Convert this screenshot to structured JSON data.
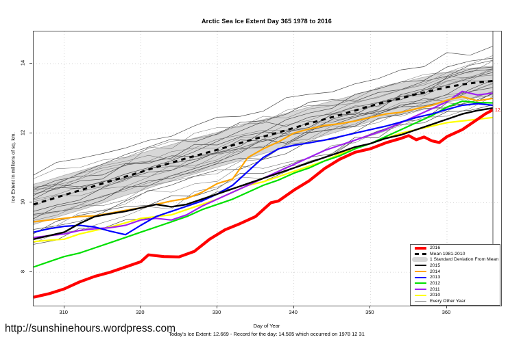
{
  "footer": {
    "url": "http://sunshinehours.wordpress.com",
    "caption": "Today's Ice Extent: 12.669  - Record for the day: 14.585 which occurred on 1978 12 31"
  },
  "chart_data": {
    "type": "line",
    "title": "Arctic Sea Ice Extent Day 365 1978 to 2016",
    "xlabel": "Day of Year",
    "ylabel": "Ice Extent in millions of sq. km.",
    "xlim": [
      306,
      366
    ],
    "ylim": [
      7.0,
      14.9
    ],
    "xticks": [
      310,
      320,
      330,
      340,
      350,
      360
    ],
    "yticks": [
      8,
      10,
      12,
      14
    ],
    "grid": "dotted",
    "grid_color": "#c9c9c9",
    "legend_position": "bottom-right",
    "end_marker_day": 366,
    "annotation": {
      "text": "12.669",
      "color": "#FF0000",
      "day": 366,
      "value": 12.67
    },
    "days": [
      306,
      308,
      310,
      312,
      314,
      316,
      318,
      320,
      322,
      324,
      326,
      328,
      330,
      332,
      334,
      336,
      338,
      340,
      342,
      344,
      346,
      348,
      350,
      352,
      354,
      356,
      358,
      360,
      362,
      364,
      366
    ],
    "band": {
      "label": "1 Standard Deviation From Mean",
      "fill": "#D7D7D7",
      "edge": "#ABABAB",
      "upper": [
        10.53,
        10.65,
        10.79,
        10.91,
        11.04,
        11.17,
        11.29,
        11.42,
        11.55,
        11.67,
        11.8,
        11.91,
        12.02,
        12.15,
        12.28,
        12.39,
        12.51,
        12.63,
        12.75,
        12.87,
        12.98,
        13.1,
        13.23,
        13.34,
        13.44,
        13.56,
        13.66,
        13.75,
        13.83,
        13.89,
        13.93
      ],
      "lower": [
        9.37,
        9.51,
        9.65,
        9.78,
        9.92,
        10.06,
        10.21,
        10.34,
        10.49,
        10.63,
        10.76,
        10.89,
        11.02,
        11.15,
        11.28,
        11.41,
        11.53,
        11.67,
        11.81,
        11.93,
        12.06,
        12.2,
        12.33,
        12.46,
        12.56,
        12.68,
        12.78,
        12.89,
        12.97,
        13.03,
        13.07
      ]
    },
    "other_years": {
      "label": "Every Other Year",
      "colors": [
        "#4a4a4a",
        "#767676"
      ],
      "endpoints": [
        [
          10.75,
          14.55
        ],
        [
          10.6,
          14.3
        ],
        [
          10.5,
          14.2
        ],
        [
          10.45,
          14.1
        ],
        [
          10.4,
          14.05
        ],
        [
          10.3,
          13.95
        ],
        [
          10.25,
          13.9
        ],
        [
          10.2,
          13.85
        ],
        [
          10.15,
          13.8
        ],
        [
          10.05,
          13.75
        ],
        [
          10.0,
          13.7
        ],
        [
          9.95,
          13.65
        ],
        [
          9.85,
          13.6
        ],
        [
          9.8,
          13.55
        ],
        [
          9.7,
          13.5
        ],
        [
          9.6,
          13.45
        ],
        [
          9.5,
          13.4
        ],
        [
          9.4,
          13.3
        ],
        [
          9.3,
          13.2
        ],
        [
          9.15,
          13.1
        ],
        [
          9.0,
          13.05
        ],
        [
          8.85,
          12.95
        ],
        [
          8.7,
          12.9
        ]
      ]
    },
    "series": [
      {
        "name": "Mean 1981-2010",
        "color": "#000000",
        "width": 3,
        "dash": "6.5 6",
        "values": [
          9.95,
          10.08,
          10.22,
          10.35,
          10.48,
          10.62,
          10.75,
          10.88,
          11.02,
          11.15,
          11.28,
          11.4,
          11.52,
          11.65,
          11.78,
          11.9,
          12.02,
          12.15,
          12.28,
          12.4,
          12.52,
          12.65,
          12.78,
          12.9,
          13.0,
          13.12,
          13.22,
          13.32,
          13.4,
          13.46,
          13.5
        ]
      },
      {
        "name": "2010",
        "color": "#FFFF00",
        "width": 2.2,
        "values": [
          8.88,
          8.92,
          8.95,
          9.1,
          9.2,
          9.3,
          9.42,
          9.55,
          9.6,
          9.65,
          9.8,
          9.95,
          10.1,
          10.3,
          10.5,
          10.6,
          10.75,
          10.9,
          11.05,
          11.2,
          11.4,
          11.55,
          11.7,
          11.85,
          12.0,
          12.1,
          12.2,
          12.3,
          12.35,
          12.4,
          12.45
        ]
      },
      {
        "name": "2011",
        "color": "#A020F0",
        "width": 2.2,
        "values": [
          9.0,
          9.05,
          9.1,
          9.2,
          9.25,
          9.28,
          9.35,
          9.5,
          9.55,
          9.5,
          9.65,
          9.9,
          10.1,
          10.3,
          10.5,
          10.7,
          10.9,
          11.1,
          11.3,
          11.5,
          11.65,
          11.8,
          11.95,
          12.1,
          12.3,
          12.5,
          12.7,
          12.9,
          13.2,
          13.1,
          13.15
        ]
      },
      {
        "name": "2012",
        "color": "#00DF00",
        "width": 2.2,
        "values": [
          8.15,
          8.3,
          8.45,
          8.55,
          8.7,
          8.85,
          9.0,
          9.15,
          9.3,
          9.45,
          9.6,
          9.8,
          9.95,
          10.1,
          10.3,
          10.5,
          10.65,
          10.85,
          11.0,
          11.2,
          11.35,
          11.55,
          11.7,
          11.9,
          12.1,
          12.3,
          12.5,
          12.75,
          12.92,
          12.88,
          12.87
        ]
      },
      {
        "name": "2013",
        "color": "#0000FF",
        "width": 2.2,
        "values": [
          9.15,
          9.25,
          9.32,
          9.35,
          9.3,
          9.18,
          9.08,
          9.35,
          9.6,
          9.75,
          9.9,
          10.05,
          10.25,
          10.5,
          10.9,
          11.3,
          11.55,
          11.65,
          11.72,
          11.8,
          11.9,
          12.0,
          12.1,
          12.2,
          12.32,
          12.45,
          12.55,
          12.68,
          12.8,
          12.85,
          12.8
        ]
      },
      {
        "name": "2014",
        "color": "#FFA500",
        "width": 2.2,
        "values": [
          9.45,
          9.5,
          9.55,
          9.6,
          9.62,
          9.7,
          9.78,
          9.85,
          9.95,
          10.05,
          10.12,
          10.3,
          10.55,
          10.68,
          11.3,
          11.55,
          11.75,
          12.0,
          12.12,
          12.22,
          12.27,
          12.35,
          12.45,
          12.55,
          12.6,
          12.7,
          12.8,
          12.95,
          13.05,
          12.93,
          13.0
        ]
      },
      {
        "name": "2015",
        "color": "#000000",
        "width": 2.4,
        "values": [
          8.95,
          9.05,
          9.15,
          9.4,
          9.6,
          9.68,
          9.75,
          9.85,
          9.95,
          9.88,
          9.95,
          10.1,
          10.25,
          10.4,
          10.55,
          10.7,
          10.85,
          11.0,
          11.15,
          11.3,
          11.45,
          11.6,
          11.7,
          11.85,
          11.95,
          12.1,
          12.25,
          12.4,
          12.55,
          12.65,
          12.72
        ]
      },
      {
        "name": "2016",
        "color": "#FF0000",
        "width": 4.2,
        "days": [
          306,
          308,
          310,
          312,
          314,
          316,
          318,
          320,
          321,
          323,
          325,
          327,
          329,
          331,
          333,
          335,
          337,
          338,
          340,
          342,
          344,
          346,
          348,
          350,
          352,
          354,
          355,
          356,
          357,
          358,
          359,
          360,
          361,
          362,
          363,
          364,
          365,
          366
        ],
        "values": [
          7.28,
          7.38,
          7.52,
          7.72,
          7.88,
          8.0,
          8.15,
          8.3,
          8.5,
          8.45,
          8.44,
          8.6,
          8.95,
          9.22,
          9.4,
          9.6,
          10.0,
          10.05,
          10.36,
          10.63,
          10.98,
          11.25,
          11.45,
          11.55,
          11.72,
          11.85,
          11.93,
          11.81,
          11.89,
          11.78,
          11.73,
          11.9,
          12.0,
          12.1,
          12.25,
          12.4,
          12.55,
          12.67
        ]
      }
    ],
    "legend": [
      {
        "label": "2016",
        "swatch": "line",
        "color": "#FF0000",
        "thick": 4
      },
      {
        "label": "Mean 1981-2010",
        "swatch": "dash",
        "color": "#000000",
        "thick": 3
      },
      {
        "label": "1 Standard Deviation From Mean",
        "swatch": "band",
        "color": "#D7D7D7"
      },
      {
        "label": "2015",
        "swatch": "line",
        "color": "#000000",
        "thick": 2.5
      },
      {
        "label": "2014",
        "swatch": "line",
        "color": "#FFA500",
        "thick": 2.5
      },
      {
        "label": "2013",
        "swatch": "line",
        "color": "#0000FF",
        "thick": 2.5
      },
      {
        "label": "2012",
        "swatch": "line",
        "color": "#00DF00",
        "thick": 2.5
      },
      {
        "label": "2011",
        "swatch": "line",
        "color": "#A020F0",
        "thick": 2.5
      },
      {
        "label": "2010",
        "swatch": "line",
        "color": "#FFFF00",
        "thick": 2.5
      },
      {
        "label": "Every Other Year",
        "swatch": "thinline",
        "color": "#777777",
        "thick": 1
      }
    ]
  }
}
